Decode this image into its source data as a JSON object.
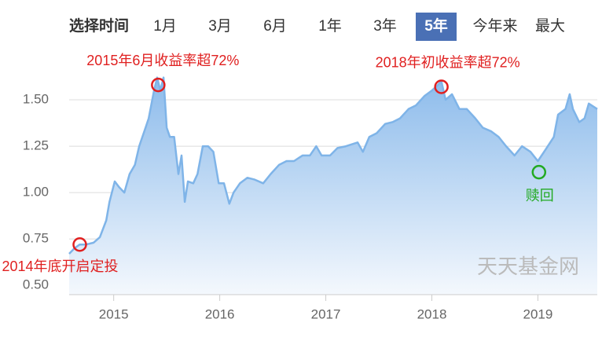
{
  "header": {
    "label": "选择时间",
    "tabs": [
      "1月",
      "3月",
      "6月",
      "1年",
      "3年",
      "5年",
      "今年来",
      "最大"
    ],
    "selected": 5
  },
  "chart_data": {
    "type": "area",
    "color": "#7fb4e8",
    "x": [
      2014.58,
      2014.63,
      2014.68,
      2014.74,
      2014.81,
      2014.87,
      2014.93,
      2014.96,
      2015.01,
      2015.05,
      2015.1,
      2015.15,
      2015.2,
      2015.24,
      2015.3,
      2015.33,
      2015.38,
      2015.41,
      2015.44,
      2015.47,
      2015.5,
      2015.53,
      2015.57,
      2015.61,
      2015.64,
      2015.67,
      2015.7,
      2015.75,
      2015.79,
      2015.84,
      2015.89,
      2015.94,
      2015.99,
      2016.04,
      2016.09,
      2016.13,
      2016.19,
      2016.26,
      2016.33,
      2016.41,
      2016.48,
      2016.56,
      2016.63,
      2016.7,
      2016.78,
      2016.85,
      2016.91,
      2016.96,
      2017.04,
      2017.11,
      2017.19,
      2017.3,
      2017.35,
      2017.41,
      2017.48,
      2017.56,
      2017.63,
      2017.7,
      2017.78,
      2017.85,
      2017.93,
      2018.0,
      2018.04,
      2018.09,
      2018.13,
      2018.19,
      2018.26,
      2018.33,
      2018.41,
      2018.48,
      2018.56,
      2018.63,
      2018.7,
      2018.78,
      2018.85,
      2018.93,
      2019.0,
      2019.07,
      2019.15,
      2019.19,
      2019.26,
      2019.3,
      2019.33,
      2019.39,
      2019.44,
      2019.48,
      2019.56
    ],
    "values": [
      0.67,
      0.7,
      0.72,
      0.72,
      0.73,
      0.76,
      0.85,
      0.95,
      1.06,
      1.03,
      1.0,
      1.1,
      1.15,
      1.25,
      1.35,
      1.4,
      1.55,
      1.62,
      1.55,
      1.62,
      1.35,
      1.3,
      1.3,
      1.1,
      1.2,
      0.95,
      1.06,
      1.05,
      1.1,
      1.25,
      1.25,
      1.22,
      1.05,
      1.05,
      0.94,
      1.0,
      1.05,
      1.08,
      1.07,
      1.05,
      1.1,
      1.15,
      1.17,
      1.17,
      1.2,
      1.2,
      1.25,
      1.2,
      1.2,
      1.24,
      1.25,
      1.27,
      1.22,
      1.3,
      1.32,
      1.37,
      1.38,
      1.4,
      1.45,
      1.47,
      1.52,
      1.55,
      1.57,
      1.6,
      1.5,
      1.53,
      1.45,
      1.45,
      1.4,
      1.35,
      1.33,
      1.3,
      1.25,
      1.2,
      1.25,
      1.22,
      1.17,
      1.23,
      1.3,
      1.42,
      1.45,
      1.53,
      1.45,
      1.38,
      1.4,
      1.48,
      1.45
    ],
    "xlim": [
      2014.58,
      2019.56
    ],
    "xticks": [
      2015,
      2016,
      2017,
      2018,
      2019
    ],
    "ylim": [
      0.45,
      1.7
    ],
    "yticks": [
      {
        "value": 0.5,
        "label": "0.50"
      },
      {
        "value": 0.75,
        "label": "0.75"
      },
      {
        "value": 1.0,
        "label": "1.00"
      },
      {
        "value": 1.25,
        "label": "1.25"
      },
      {
        "value": 1.5,
        "label": "1.50"
      }
    ],
    "grid": true,
    "annotations": [
      {
        "label": "2014年底开启定投",
        "x": 2014.68,
        "y": 0.72,
        "color": "#e02020"
      },
      {
        "label": "2015年6月收益率超72%",
        "x": 2015.42,
        "y": 1.58,
        "color": "#e02020"
      },
      {
        "label": "2018年初收益率超72%",
        "x": 2018.09,
        "y": 1.57,
        "color": "#e02020"
      },
      {
        "label": "赎回",
        "x": 2019.01,
        "y": 1.11,
        "color": "#22aa22"
      }
    ],
    "watermark": "天天基金网"
  }
}
